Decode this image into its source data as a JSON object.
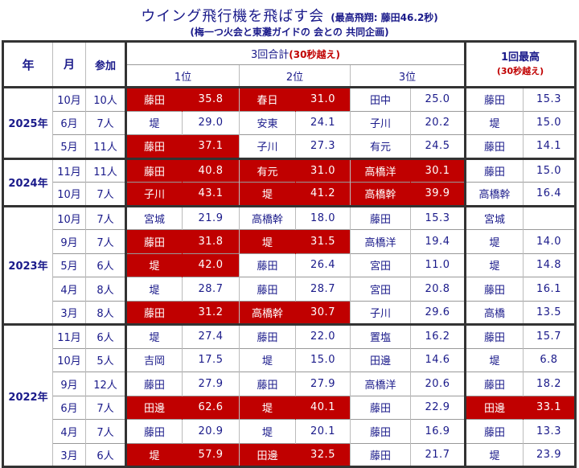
{
  "title": {
    "main": "ウイング飛行機を飛ばす会",
    "sub": "(最高飛翔: 藤田46.2秒)"
  },
  "subtitle": "(梅一つ火会と東灘ガイドの 会との 共同企画)",
  "headers": {
    "year": "年",
    "month": "月",
    "participants": "参加",
    "total3": "3回合計",
    "total3_note": "(30秒越え)",
    "best1": "1回最高",
    "best1_note": "(30秒越え)",
    "rank1": "1位",
    "rank2": "2位",
    "rank3": "3位"
  },
  "colors": {
    "highlight": "#c00000",
    "text": "#1a1a8a"
  },
  "groups": [
    {
      "year": "2025年",
      "rows": [
        {
          "month": "10月",
          "count": "10人",
          "r1": [
            "藤田",
            "35.8",
            true
          ],
          "r2": [
            "春日",
            "31.0",
            true
          ],
          "r3": [
            "田中",
            "25.0",
            false
          ],
          "best": [
            "藤田",
            "15.3",
            false
          ]
        },
        {
          "month": "6月",
          "count": "7人",
          "r1": [
            "堤",
            "29.0",
            false
          ],
          "r2": [
            "安東",
            "24.1",
            false
          ],
          "r3": [
            "子川",
            "20.2",
            false
          ],
          "best": [
            "堤",
            "15.0",
            false
          ]
        },
        {
          "month": "5月",
          "count": "11人",
          "r1": [
            "藤田",
            "37.1",
            true
          ],
          "r2": [
            "子川",
            "27.3",
            false
          ],
          "r3": [
            "有元",
            "24.5",
            false
          ],
          "best": [
            "藤田",
            "14.1",
            false
          ]
        }
      ]
    },
    {
      "year": "2024年",
      "rows": [
        {
          "month": "11月",
          "count": "11人",
          "r1": [
            "藤田",
            "40.8",
            true
          ],
          "r2": [
            "有元",
            "31.0",
            true
          ],
          "r3": [
            "高橋洋",
            "30.1",
            true
          ],
          "best": [
            "藤田",
            "15.0",
            false
          ]
        },
        {
          "month": "10月",
          "count": "7人",
          "r1": [
            "子川",
            "43.1",
            true
          ],
          "r2": [
            "堤",
            "41.2",
            true
          ],
          "r3": [
            "高橋幹",
            "39.9",
            true
          ],
          "best": [
            "高橋幹",
            "16.4",
            false
          ]
        }
      ]
    },
    {
      "year": "2023年",
      "rows": [
        {
          "month": "10月",
          "count": "7人",
          "r1": [
            "宮城",
            "21.9",
            false
          ],
          "r2": [
            "高橋幹",
            "18.0",
            false
          ],
          "r3": [
            "藤田",
            "15.3",
            false
          ],
          "best": [
            "宮城",
            "",
            false
          ]
        },
        {
          "month": "9月",
          "count": "7人",
          "r1": [
            "藤田",
            "31.8",
            true
          ],
          "r2": [
            "堤",
            "31.5",
            true
          ],
          "r3": [
            "高橋洋",
            "19.4",
            false
          ],
          "best": [
            "堤",
            "14.0",
            false
          ]
        },
        {
          "month": "5月",
          "count": "6人",
          "r1": [
            "堤",
            "42.0",
            true
          ],
          "r2": [
            "藤田",
            "26.4",
            false
          ],
          "r3": [
            "宮田",
            "11.0",
            false
          ],
          "best": [
            "堤",
            "14.8",
            false
          ]
        },
        {
          "month": "4月",
          "count": "8人",
          "r1": [
            "堤",
            "28.7",
            false
          ],
          "r2": [
            "藤田",
            "28.7",
            false
          ],
          "r3": [
            "宮田",
            "20.8",
            false
          ],
          "best": [
            "藤田",
            "16.1",
            false
          ]
        },
        {
          "month": "3月",
          "count": "8人",
          "r1": [
            "藤田",
            "31.2",
            true
          ],
          "r2": [
            "高橋幹",
            "30.7",
            true
          ],
          "r3": [
            "子川",
            "29.6",
            false
          ],
          "best": [
            "高橋",
            "13.5",
            false
          ]
        }
      ]
    },
    {
      "year": "2022年",
      "rows": [
        {
          "month": "11月",
          "count": "6人",
          "r1": [
            "堤",
            "27.4",
            false
          ],
          "r2": [
            "藤田",
            "22.0",
            false
          ],
          "r3": [
            "置塩",
            "16.2",
            false
          ],
          "best": [
            "藤田",
            "15.7",
            false
          ]
        },
        {
          "month": "10月",
          "count": "5人",
          "r1": [
            "吉岡",
            "17.5",
            false
          ],
          "r2": [
            "堤",
            "15.0",
            false
          ],
          "r3": [
            "田邊",
            "14.6",
            false
          ],
          "best": [
            "堤",
            "6.8",
            false
          ]
        },
        {
          "month": "9月",
          "count": "12人",
          "r1": [
            "藤田",
            "27.9",
            false
          ],
          "r2": [
            "藤田",
            "27.9",
            false
          ],
          "r3": [
            "高橋洋",
            "20.6",
            false
          ],
          "best": [
            "藤田",
            "18.2",
            false
          ]
        },
        {
          "month": "6月",
          "count": "7人",
          "r1": [
            "田邊",
            "62.6",
            true
          ],
          "r2": [
            "堤",
            "40.1",
            true
          ],
          "r3": [
            "藤田",
            "22.9",
            false
          ],
          "best": [
            "田邊",
            "33.1",
            true
          ]
        },
        {
          "month": "4月",
          "count": "7人",
          "r1": [
            "藤田",
            "20.9",
            false
          ],
          "r2": [
            "堤",
            "20.1",
            false
          ],
          "r3": [
            "藤田",
            "16.9",
            false
          ],
          "best": [
            "藤田",
            "13.3",
            false
          ]
        },
        {
          "month": "3月",
          "count": "6人",
          "r1": [
            "堤",
            "57.9",
            true
          ],
          "r2": [
            "田邊",
            "32.5",
            true
          ],
          "r3": [
            "藤田",
            "21.7",
            false
          ],
          "best": [
            "堤",
            "23.9",
            false
          ]
        }
      ]
    }
  ]
}
